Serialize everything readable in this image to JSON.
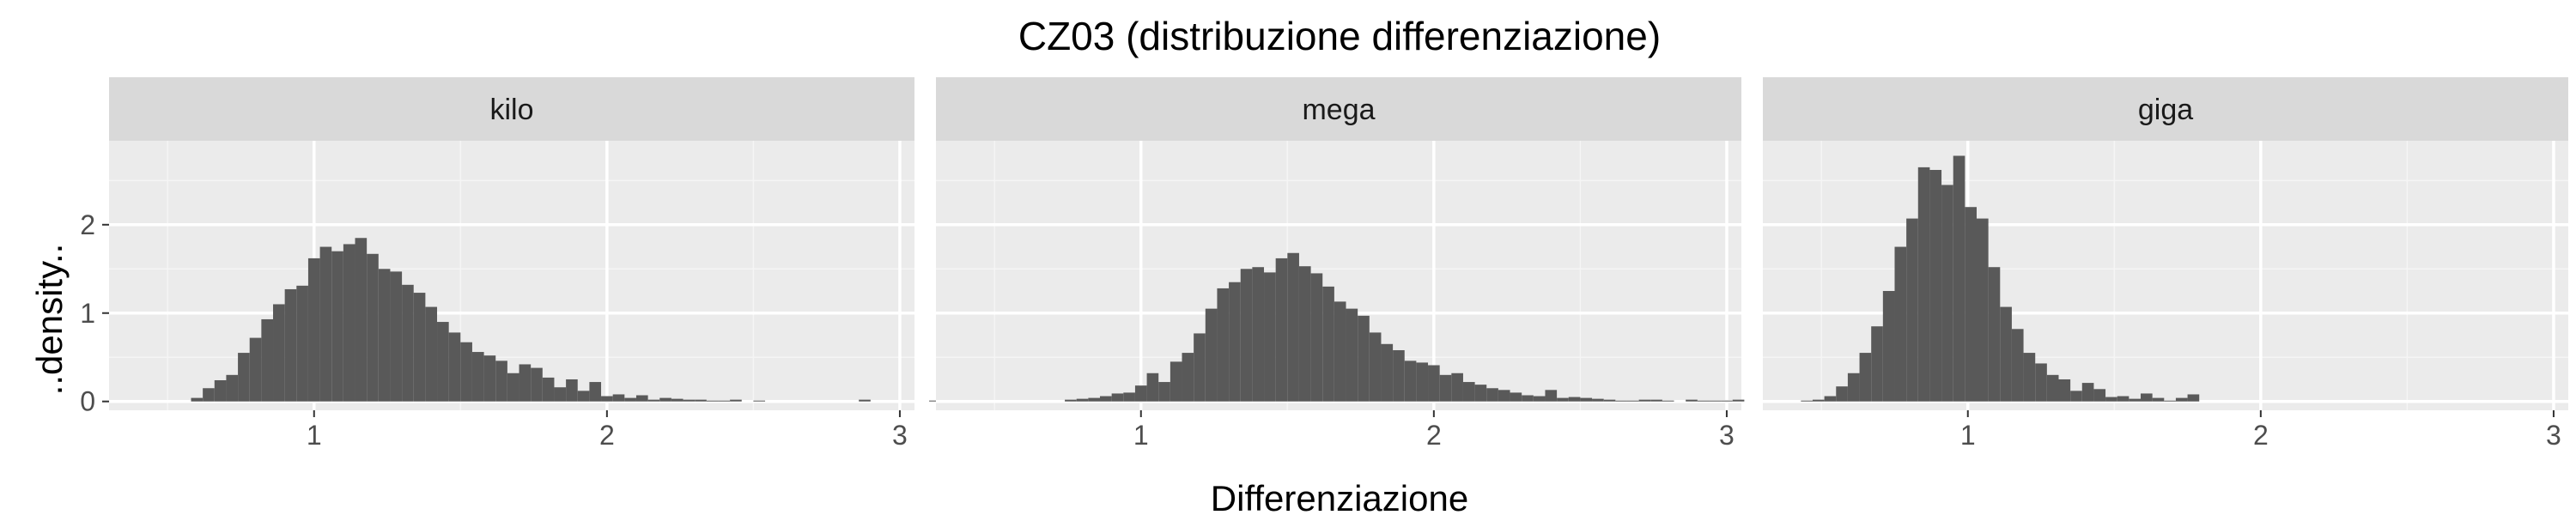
{
  "chart_data": {
    "type": "histogram",
    "title": "CZ03 (distribuzione differenziazione)",
    "xlabel": "Differenziazione",
    "ylabel": "..density..",
    "xlim": [
      0.3,
      3.05
    ],
    "ylim": [
      -0.1,
      2.95
    ],
    "x_ticks": [
      1,
      2,
      3
    ],
    "y_ticks": [
      0,
      1,
      2
    ],
    "grid": true,
    "bar_color": "#595959",
    "panel_background": "#ebebeb",
    "strip_background": "#d9d9d9",
    "panels": [
      {
        "name": "kilo",
        "bin_width": 0.04,
        "x_start": 0.58,
        "values": [
          0.04,
          0.15,
          0.24,
          0.3,
          0.55,
          0.72,
          0.93,
          1.1,
          1.27,
          1.31,
          1.62,
          1.75,
          1.7,
          1.78,
          1.85,
          1.67,
          1.5,
          1.47,
          1.32,
          1.23,
          1.07,
          0.9,
          0.78,
          0.67,
          0.56,
          0.52,
          0.46,
          0.32,
          0.42,
          0.38,
          0.27,
          0.16,
          0.25,
          0.12,
          0.22,
          0.06,
          0.08,
          0.04,
          0.07,
          0.02,
          0.04,
          0.03,
          0.02,
          0.02,
          0.01,
          0.01,
          0.02,
          0.0,
          0.01,
          0.0,
          0.0,
          0.0,
          0.0,
          0.0,
          0.0,
          0.0,
          0.0,
          0.02,
          0.0,
          0.0,
          0.0,
          0.0,
          0.0,
          0.01,
          0.0,
          0.0,
          0.0,
          0.0,
          0.0,
          0.02,
          0.0,
          0.0,
          0.0,
          0.0,
          0.0,
          0.0,
          0.03,
          0.0
        ]
      },
      {
        "name": "mega",
        "bin_width": 0.04,
        "x_start": 0.74,
        "values": [
          0.02,
          0.03,
          0.04,
          0.06,
          0.09,
          0.1,
          0.18,
          0.32,
          0.22,
          0.45,
          0.55,
          0.77,
          1.05,
          1.28,
          1.35,
          1.5,
          1.52,
          1.46,
          1.62,
          1.68,
          1.53,
          1.45,
          1.3,
          1.13,
          1.05,
          0.97,
          0.78,
          0.65,
          0.58,
          0.46,
          0.44,
          0.41,
          0.3,
          0.32,
          0.22,
          0.19,
          0.15,
          0.13,
          0.1,
          0.07,
          0.06,
          0.13,
          0.04,
          0.05,
          0.04,
          0.03,
          0.02,
          0.01,
          0.01,
          0.02,
          0.02,
          0.01,
          0.0,
          0.02,
          0.01,
          0.01,
          0.01,
          0.02
        ]
      },
      {
        "name": "giga",
        "bin_width": 0.04,
        "x_start": 0.43,
        "values": [
          0.01,
          0.02,
          0.06,
          0.17,
          0.32,
          0.55,
          0.85,
          1.25,
          1.75,
          2.07,
          2.65,
          2.62,
          2.45,
          2.78,
          2.2,
          2.07,
          1.52,
          1.07,
          0.82,
          0.55,
          0.43,
          0.3,
          0.25,
          0.12,
          0.21,
          0.14,
          0.05,
          0.06,
          0.03,
          0.09,
          0.04,
          0.01,
          0.04,
          0.08
        ]
      }
    ]
  }
}
